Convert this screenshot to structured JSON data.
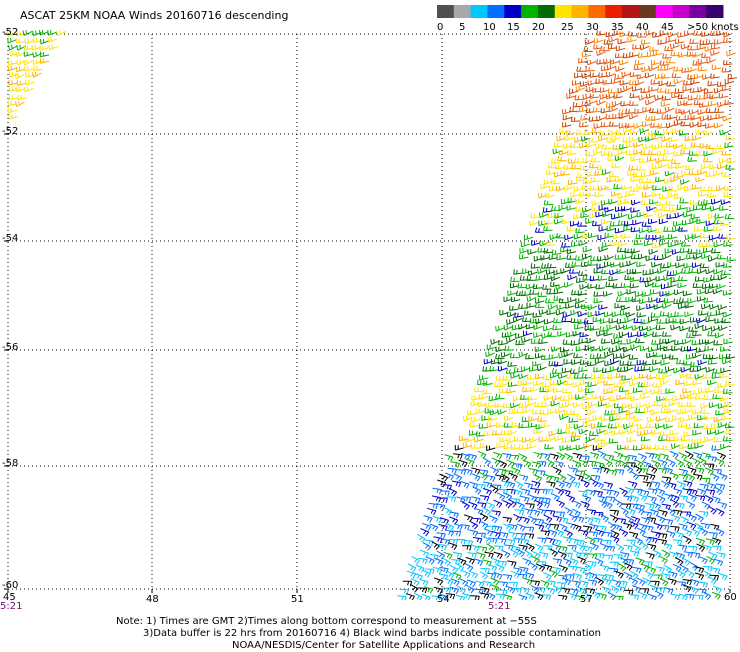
{
  "title": "ASCAT 25KM NOAA Winds 20160716 descending",
  "legend": {
    "labels": [
      "0",
      "5",
      "10",
      "15",
      "20",
      "25",
      "30",
      "35",
      "40",
      "45",
      ">50 knots"
    ],
    "colors": [
      "#505050",
      "#a8a8a8",
      "#00c8ff",
      "#0070ff",
      "#0000c8",
      "#00b400",
      "#006e00",
      "#ffe400",
      "#ffb400",
      "#ff6a00",
      "#e82000",
      "#b41414",
      "#6a3a1e",
      "#ff00ff",
      "#c800c8",
      "#7800a0",
      "#380070"
    ]
  },
  "map": {
    "lon_ticks": [
      "45",
      "48",
      "51",
      "54",
      "57",
      "60"
    ],
    "lat_ticks": [
      "-52",
      "-52",
      "-54",
      "-56",
      "-58",
      "-60"
    ],
    "time_labels": [
      "5:21",
      "5:21"
    ]
  },
  "notes": [
    "Note: 1) Times are GMT 2)Times along bottom correspond to measurement at −55S",
    "3)Data buffer is 22 hrs from 20160716 4) Black wind barbs indicate possible contamination",
    "NOAA/NESDIS/Center for Satellite Applications and Research"
  ]
}
